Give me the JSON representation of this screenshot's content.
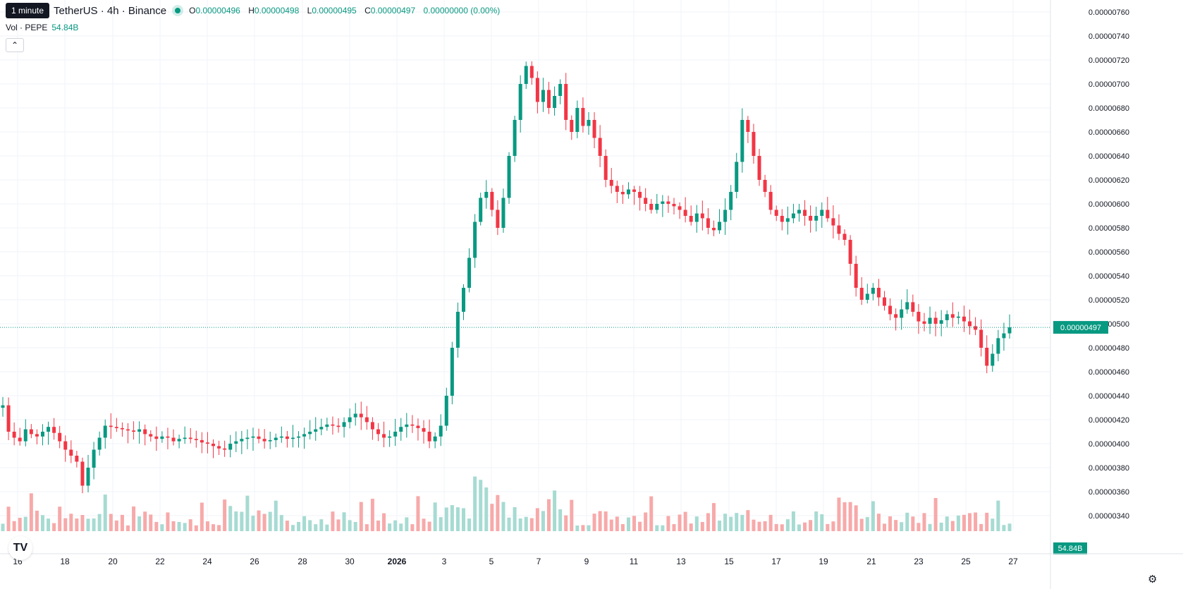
{
  "header": {
    "tooltip": "1 minute",
    "symbol": "TetherUS · 4h · Binance",
    "ohlc": {
      "o_label": "O",
      "o": "0.00000496",
      "h_label": "H",
      "h": "0.00000498",
      "l_label": "L",
      "l": "0.00000495",
      "c_label": "C",
      "c": "0.00000497",
      "change": "0.00000000 (0.00%)"
    },
    "volume_label": "Vol · PEPE",
    "volume_value": "54.84B",
    "collapse_icon": "chevron-up-icon"
  },
  "price_scale": {
    "last_price": "0.00000497",
    "last_volume": "54.84B"
  },
  "colors": {
    "up": "#089981",
    "down": "#f23645",
    "vol_up": "#a6dbd2",
    "vol_down": "#f7a9a9"
  },
  "chart_data": {
    "type": "candlestick",
    "y_ticks": [
      "0.00000760",
      "0.00000740",
      "0.00000720",
      "0.00000700",
      "0.00000680",
      "0.00000660",
      "0.00000640",
      "0.00000620",
      "0.00000600",
      "0.00000580",
      "0.00000560",
      "0.00000540",
      "0.00000520",
      "0.00000500",
      "0.00000480",
      "0.00000460",
      "0.00000440",
      "0.00000420",
      "0.00000400",
      "0.00000380",
      "0.00000360",
      "0.00000340"
    ],
    "x_ticks": [
      "16",
      "18",
      "20",
      "22",
      "24",
      "26",
      "28",
      "30",
      "2026",
      "3",
      "5",
      "7",
      "9",
      "11",
      "13",
      "15",
      "17",
      "19",
      "21",
      "23",
      "25",
      "27"
    ],
    "x_start": "Dec 15 2025",
    "candle_interval": "4h",
    "close_path_approx": [
      4.32,
      4.1,
      4.05,
      4.02,
      4.12,
      4.08,
      4.06,
      4.1,
      4.14,
      4.09,
      4.02,
      3.95,
      3.9,
      3.85,
      3.65,
      3.8,
      3.95,
      4.05,
      4.15,
      4.14,
      4.13,
      4.12,
      4.11,
      4.1,
      4.12,
      4.08,
      4.06,
      4.04,
      4.06,
      4.05,
      4.02,
      4.04,
      4.05,
      4.04,
      4.03,
      4.01,
      4.0,
      3.98,
      3.96,
      3.95,
      4.0,
      4.02,
      4.04,
      4.05,
      4.06,
      4.04,
      4.02,
      4.03,
      4.05,
      4.06,
      4.04,
      4.05,
      4.06,
      4.08,
      4.1,
      4.12,
      4.14,
      4.16,
      4.15,
      4.14,
      4.18,
      4.22,
      4.25,
      4.22,
      4.18,
      4.12,
      4.08,
      4.05,
      4.06,
      4.1,
      4.14,
      4.16,
      4.15,
      4.13,
      4.1,
      4.02,
      4.06,
      4.15,
      4.4,
      4.8,
      5.1,
      5.3,
      5.55,
      5.85,
      6.05,
      6.1,
      5.95,
      5.8,
      6.05,
      6.4,
      6.7,
      7.0,
      7.15,
      7.05,
      6.85,
      6.95,
      6.8,
      6.9,
      7.0,
      6.7,
      6.6,
      6.8,
      6.65,
      6.7,
      6.55,
      6.4,
      6.2,
      6.15,
      6.1,
      6.08,
      6.12,
      6.1,
      6.05,
      6.0,
      5.95,
      6.0,
      6.02,
      6.0,
      5.98,
      5.95,
      5.9,
      5.85,
      5.92,
      5.88,
      5.8,
      5.78,
      5.85,
      5.95,
      6.1,
      6.35,
      6.7,
      6.6,
      6.4,
      6.2,
      6.1,
      5.95,
      5.9,
      5.85,
      5.88,
      5.92,
      5.95,
      5.9,
      5.86,
      5.9,
      5.95,
      5.88,
      5.82,
      5.75,
      5.7,
      5.5,
      5.3,
      5.2,
      5.25,
      5.3,
      5.22,
      5.15,
      5.08,
      5.05,
      5.12,
      5.18,
      5.1,
      5.02,
      5.0,
      5.05,
      5.0,
      5.03,
      5.08,
      5.05,
      5.06,
      5.02,
      4.98,
      4.95,
      4.8,
      4.65,
      4.75,
      4.88,
      4.92,
      4.97
    ]
  }
}
